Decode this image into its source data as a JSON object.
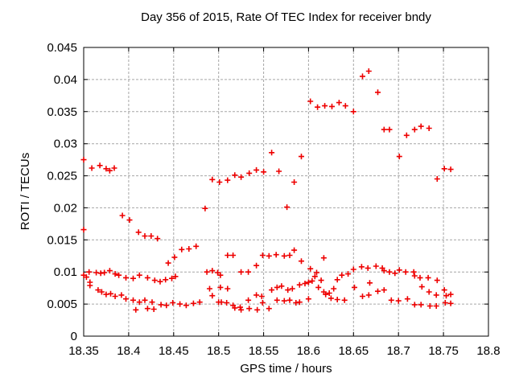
{
  "title": "Day 356 of 2015, Rate Of TEC Index for receiver bndy",
  "colors": {
    "background": "#ffffff",
    "border": "#000000",
    "grid": "#a6a6a6",
    "marker": "#ee0000",
    "text": "#000000"
  },
  "chart_data": {
    "type": "scatter",
    "title": "Day 356 of 2015, Rate Of TEC Index for receiver bndy",
    "xlabel": "GPS time / hours",
    "ylabel": "ROTI / TECUs",
    "xlim": [
      18.35,
      18.8
    ],
    "ylim": [
      0,
      0.045
    ],
    "xticks": [
      18.35,
      18.4,
      18.45,
      18.5,
      18.55,
      18.6,
      18.65,
      18.7,
      18.75,
      18.8
    ],
    "xtick_labels": [
      "18.35",
      "18.4",
      "18.45",
      "18.5",
      "18.55",
      "18.6",
      "18.65",
      "18.7",
      "18.75",
      "18.8"
    ],
    "yticks": [
      0,
      0.005,
      0.01,
      0.015,
      0.02,
      0.025,
      0.03,
      0.035,
      0.04,
      0.045
    ],
    "ytick_labels": [
      "0",
      "0.005",
      "0.01",
      "0.015",
      "0.02",
      "0.025",
      "0.03",
      "0.035",
      "0.04",
      "0.045"
    ],
    "grid": true,
    "legend": "none",
    "marker": "plus",
    "series_name": "ROTI",
    "points": [
      [
        18.35,
        0.0275
      ],
      [
        18.35,
        0.0166
      ],
      [
        18.35,
        0.0095
      ],
      [
        18.353,
        0.0092
      ],
      [
        18.356,
        0.01
      ],
      [
        18.357,
        0.0084
      ],
      [
        18.357,
        0.0079
      ],
      [
        18.359,
        0.0262
      ],
      [
        18.364,
        0.0099
      ],
      [
        18.366,
        0.0072
      ],
      [
        18.368,
        0.0266
      ],
      [
        18.369,
        0.0098
      ],
      [
        18.37,
        0.0069
      ],
      [
        18.373,
        0.0099
      ],
      [
        18.375,
        0.0261
      ],
      [
        18.375,
        0.0065
      ],
      [
        18.379,
        0.0258
      ],
      [
        18.379,
        0.0102
      ],
      [
        18.38,
        0.0066
      ],
      [
        18.384,
        0.0262
      ],
      [
        18.385,
        0.0097
      ],
      [
        18.385,
        0.0062
      ],
      [
        18.389,
        0.0095
      ],
      [
        18.392,
        0.0064
      ],
      [
        18.393,
        0.0188
      ],
      [
        18.397,
        0.0091
      ],
      [
        18.397,
        0.0058
      ],
      [
        18.401,
        0.0181
      ],
      [
        18.405,
        0.009
      ],
      [
        18.405,
        0.0056
      ],
      [
        18.408,
        0.0041
      ],
      [
        18.411,
        0.0162
      ],
      [
        18.412,
        0.0095
      ],
      [
        18.412,
        0.0053
      ],
      [
        18.418,
        0.0156
      ],
      [
        18.418,
        0.0056
      ],
      [
        18.421,
        0.0091
      ],
      [
        18.421,
        0.0043
      ],
      [
        18.425,
        0.0156
      ],
      [
        18.426,
        0.0053
      ],
      [
        18.428,
        0.0042
      ],
      [
        18.429,
        0.0087
      ],
      [
        18.432,
        0.0152
      ],
      [
        18.435,
        0.0085
      ],
      [
        18.436,
        0.0049
      ],
      [
        18.441,
        0.0088
      ],
      [
        18.442,
        0.0048
      ],
      [
        18.444,
        0.0114
      ],
      [
        18.448,
        0.009
      ],
      [
        18.449,
        0.0052
      ],
      [
        18.451,
        0.0123
      ],
      [
        18.452,
        0.0093
      ],
      [
        18.457,
        0.005
      ],
      [
        18.459,
        0.0135
      ],
      [
        18.464,
        0.0048
      ],
      [
        18.467,
        0.0136
      ],
      [
        18.472,
        0.0051
      ],
      [
        18.475,
        0.014
      ],
      [
        18.479,
        0.0053
      ],
      [
        18.485,
        0.0199
      ],
      [
        18.487,
        0.01
      ],
      [
        18.49,
        0.0074
      ],
      [
        18.493,
        0.0244
      ],
      [
        18.493,
        0.0102
      ],
      [
        18.493,
        0.0063
      ],
      [
        18.499,
        0.0099
      ],
      [
        18.5,
        0.0053
      ],
      [
        18.501,
        0.024
      ],
      [
        18.502,
        0.0095
      ],
      [
        18.502,
        0.0076
      ],
      [
        18.503,
        0.0053
      ],
      [
        18.509,
        0.0052
      ],
      [
        18.51,
        0.0243
      ],
      [
        18.51,
        0.0126
      ],
      [
        18.51,
        0.0074
      ],
      [
        18.516,
        0.0126
      ],
      [
        18.516,
        0.0048
      ],
      [
        18.518,
        0.0251
      ],
      [
        18.518,
        0.0044
      ],
      [
        18.524,
        0.0045
      ],
      [
        18.525,
        0.0248
      ],
      [
        18.525,
        0.01
      ],
      [
        18.525,
        0.0041
      ],
      [
        18.533,
        0.01
      ],
      [
        18.533,
        0.0056
      ],
      [
        18.534,
        0.0254
      ],
      [
        18.534,
        0.0043
      ],
      [
        18.542,
        0.0259
      ],
      [
        18.542,
        0.011
      ],
      [
        18.542,
        0.0064
      ],
      [
        18.543,
        0.0041
      ],
      [
        18.548,
        0.0062
      ],
      [
        18.549,
        0.0126
      ],
      [
        18.549,
        0.0052
      ],
      [
        18.55,
        0.0256
      ],
      [
        18.556,
        0.0125
      ],
      [
        18.556,
        0.0043
      ],
      [
        18.559,
        0.0286
      ],
      [
        18.559,
        0.0072
      ],
      [
        18.564,
        0.0127
      ],
      [
        18.565,
        0.0076
      ],
      [
        18.565,
        0.0056
      ],
      [
        18.567,
        0.0257
      ],
      [
        18.57,
        0.0078
      ],
      [
        18.573,
        0.0125
      ],
      [
        18.573,
        0.0055
      ],
      [
        18.576,
        0.0201
      ],
      [
        18.577,
        0.0072
      ],
      [
        18.579,
        0.0126
      ],
      [
        18.579,
        0.0056
      ],
      [
        18.582,
        0.0074
      ],
      [
        18.584,
        0.024
      ],
      [
        18.584,
        0.0134
      ],
      [
        18.586,
        0.0052
      ],
      [
        18.59,
        0.008
      ],
      [
        18.59,
        0.0053
      ],
      [
        18.592,
        0.028
      ],
      [
        18.592,
        0.0117
      ],
      [
        18.596,
        0.0082
      ],
      [
        18.6,
        0.0084
      ],
      [
        18.6,
        0.0058
      ],
      [
        18.602,
        0.0366
      ],
      [
        18.602,
        0.0105
      ],
      [
        18.604,
        0.0086
      ],
      [
        18.607,
        0.0093
      ],
      [
        18.609,
        0.0099
      ],
      [
        18.61,
        0.0357
      ],
      [
        18.611,
        0.0076
      ],
      [
        18.614,
        0.0087
      ],
      [
        18.617,
        0.0122
      ],
      [
        18.617,
        0.0069
      ],
      [
        18.618,
        0.0359
      ],
      [
        18.619,
        0.0065
      ],
      [
        18.623,
        0.0067
      ],
      [
        18.625,
        0.0059
      ],
      [
        18.626,
        0.0358
      ],
      [
        18.628,
        0.0074
      ],
      [
        18.632,
        0.0088
      ],
      [
        18.632,
        0.0057
      ],
      [
        18.634,
        0.0364
      ],
      [
        18.637,
        0.0095
      ],
      [
        18.64,
        0.0056
      ],
      [
        18.641,
        0.0359
      ],
      [
        18.644,
        0.0097
      ],
      [
        18.65,
        0.035
      ],
      [
        18.65,
        0.0104
      ],
      [
        18.651,
        0.0076
      ],
      [
        18.659,
        0.0108
      ],
      [
        18.66,
        0.0405
      ],
      [
        18.66,
        0.0062
      ],
      [
        18.666,
        0.0106
      ],
      [
        18.667,
        0.0413
      ],
      [
        18.667,
        0.0064
      ],
      [
        18.668,
        0.0083
      ],
      [
        18.675,
        0.0109
      ],
      [
        18.677,
        0.038
      ],
      [
        18.677,
        0.007
      ],
      [
        18.682,
        0.0106
      ],
      [
        18.684,
        0.0322
      ],
      [
        18.684,
        0.0102
      ],
      [
        18.684,
        0.0072
      ],
      [
        18.69,
        0.0322
      ],
      [
        18.69,
        0.01
      ],
      [
        18.692,
        0.0056
      ],
      [
        18.696,
        0.0098
      ],
      [
        18.7,
        0.0055
      ],
      [
        18.701,
        0.028
      ],
      [
        18.701,
        0.0103
      ],
      [
        18.708,
        0.01
      ],
      [
        18.709,
        0.0313
      ],
      [
        18.71,
        0.0058
      ],
      [
        18.717,
        0.01
      ],
      [
        18.718,
        0.0322
      ],
      [
        18.718,
        0.0094
      ],
      [
        18.718,
        0.0049
      ],
      [
        18.724,
        0.0091
      ],
      [
        18.725,
        0.0327
      ],
      [
        18.725,
        0.0049
      ],
      [
        18.726,
        0.0077
      ],
      [
        18.733,
        0.0091
      ],
      [
        18.734,
        0.0324
      ],
      [
        18.734,
        0.0069
      ],
      [
        18.735,
        0.0047
      ],
      [
        18.742,
        0.0064
      ],
      [
        18.742,
        0.0047
      ],
      [
        18.743,
        0.0245
      ],
      [
        18.743,
        0.0087
      ],
      [
        18.751,
        0.0261
      ],
      [
        18.751,
        0.0072
      ],
      [
        18.752,
        0.0052
      ],
      [
        18.753,
        0.0063
      ],
      [
        18.758,
        0.026
      ],
      [
        18.758,
        0.0065
      ],
      [
        18.758,
        0.0051
      ]
    ]
  }
}
